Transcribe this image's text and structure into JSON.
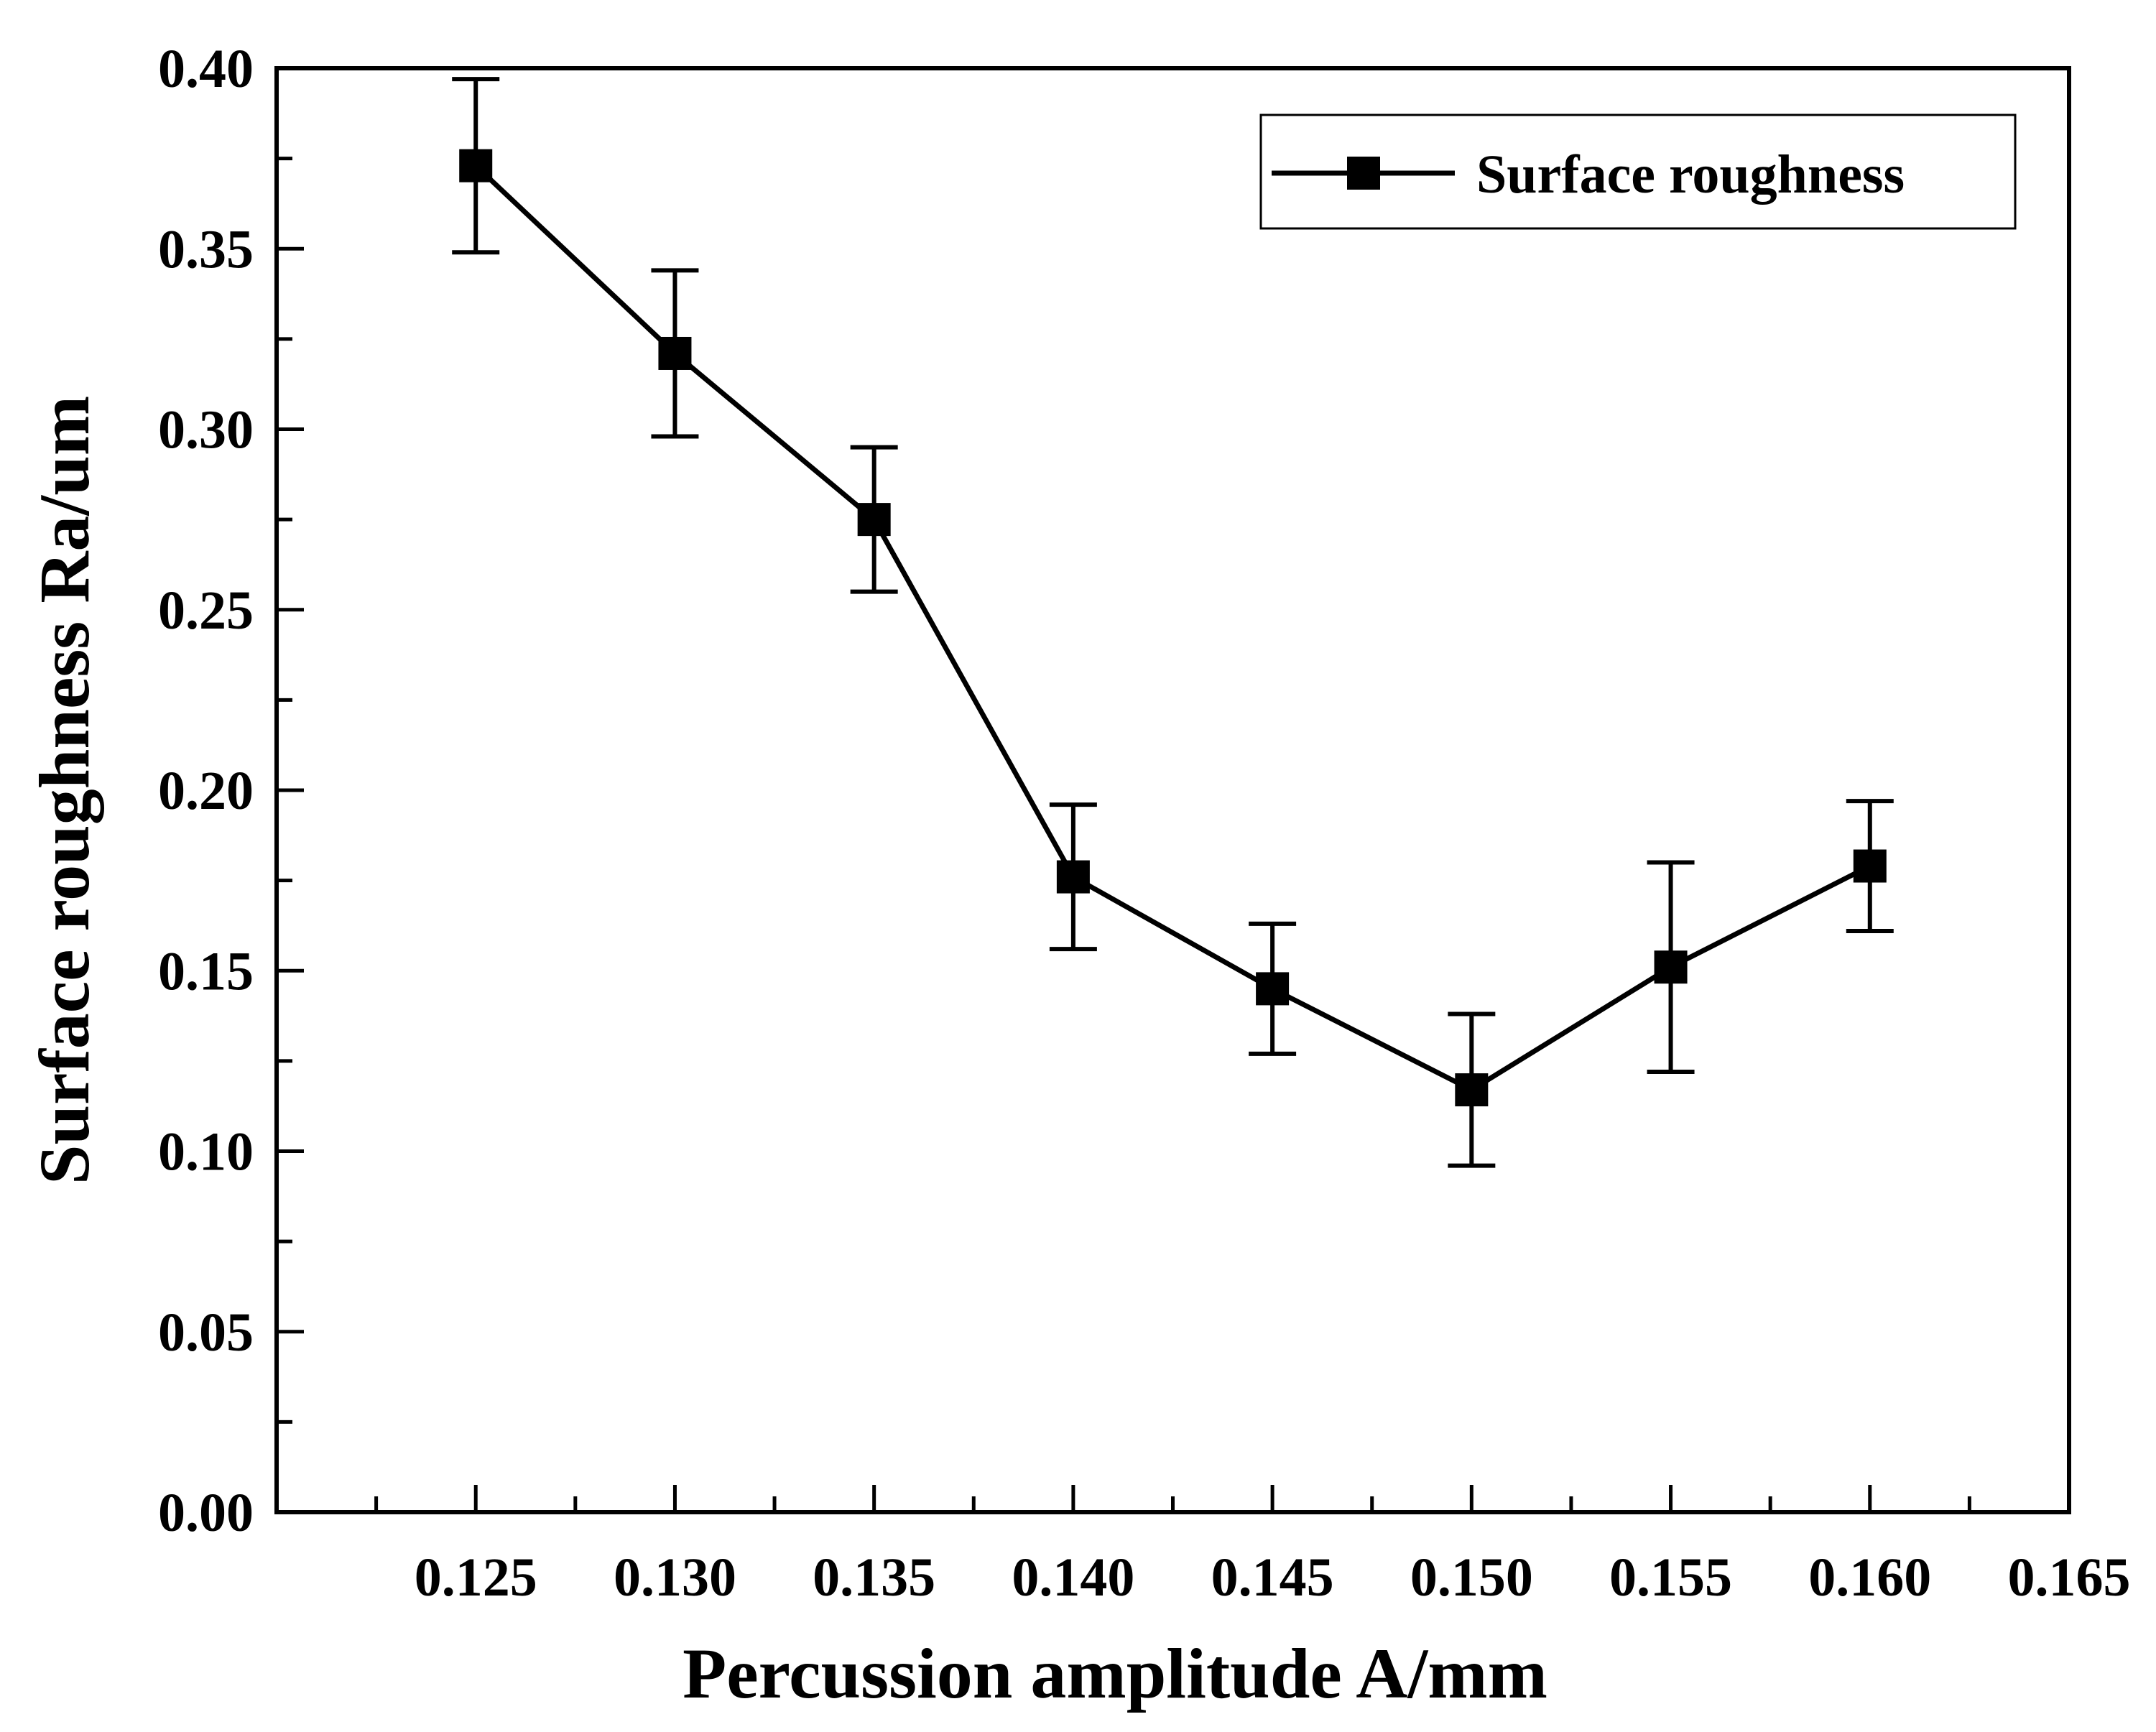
{
  "chart_data": {
    "type": "line",
    "title": "",
    "xlabel": "Percussion amplitude A/mm",
    "ylabel": "Surface roughness Ra/um",
    "xlim": [
      0.12,
      0.165
    ],
    "ylim": [
      0.0,
      0.4
    ],
    "x_ticks": [
      0.125,
      0.13,
      0.135,
      0.14,
      0.145,
      0.15,
      0.155,
      0.16,
      0.165
    ],
    "x_tick_labels": [
      "0.125",
      "0.130",
      "0.135",
      "0.140",
      "0.145",
      "0.150",
      "0.155",
      "0.160",
      "0.165"
    ],
    "y_ticks": [
      0.0,
      0.05,
      0.1,
      0.15,
      0.2,
      0.25,
      0.3,
      0.35,
      0.4
    ],
    "y_tick_labels": [
      "0.00",
      "0.05",
      "0.10",
      "0.15",
      "0.20",
      "0.25",
      "0.30",
      "0.35",
      "0.40"
    ],
    "grid": false,
    "legend_position": "top-right",
    "series": [
      {
        "name": "Surface roughness",
        "marker": "square",
        "color": "#000000",
        "x": [
          0.125,
          0.13,
          0.135,
          0.14,
          0.145,
          0.15,
          0.155,
          0.16
        ],
        "y": [
          0.373,
          0.321,
          0.275,
          0.176,
          0.145,
          0.117,
          0.151,
          0.179
        ],
        "error_low": [
          0.349,
          0.298,
          0.255,
          0.156,
          0.127,
          0.096,
          0.122,
          0.161
        ],
        "error_high": [
          0.397,
          0.344,
          0.295,
          0.196,
          0.163,
          0.138,
          0.18,
          0.197
        ]
      }
    ]
  }
}
